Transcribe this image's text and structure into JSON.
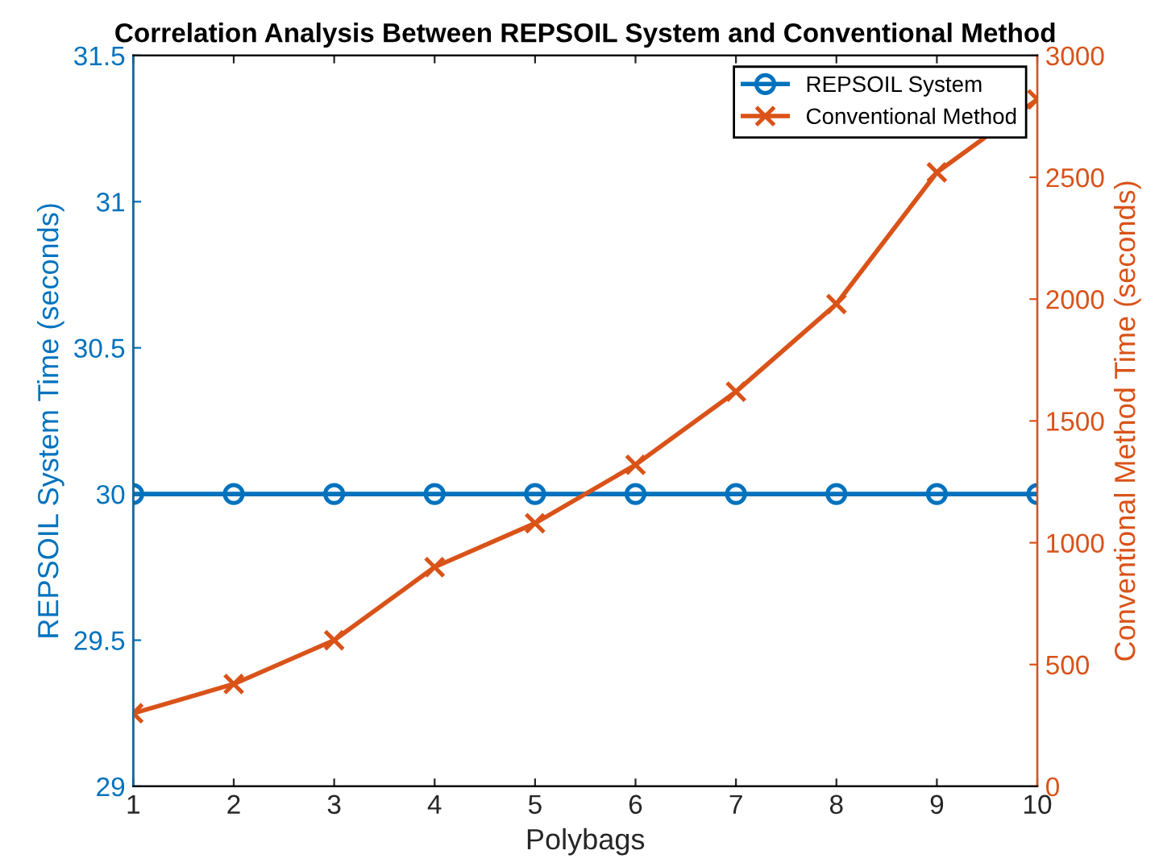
{
  "chart_data": {
    "type": "line",
    "title": "Correlation Analysis Between REPSOIL System and Conventional Method",
    "xlabel": "Polybags",
    "ylabel": "REPSOIL System Time (seconds)",
    "y2label": "Conventional Method Time (seconds)",
    "x": [
      1,
      2,
      3,
      4,
      5,
      6,
      7,
      8,
      9,
      10
    ],
    "series": [
      {
        "name": "REPSOIL System",
        "color": "#0072bd",
        "marker": "circle",
        "values": [
          30,
          30,
          30,
          30,
          30,
          30,
          30,
          30,
          30,
          30
        ]
      },
      {
        "name": "Conventional Method",
        "color": "#d95319",
        "marker": "cross",
        "axis": "y2",
        "values": [
          300,
          420,
          600,
          900,
          1080,
          1320,
          1620,
          1980,
          2520,
          2820
        ]
      }
    ],
    "xlim": [
      1,
      10
    ],
    "xticks": [
      1,
      2,
      3,
      4,
      5,
      6,
      7,
      8,
      9,
      10
    ],
    "ylim": [
      29,
      31.5
    ],
    "yticks": [
      29,
      29.5,
      30,
      30.5,
      31,
      31.5
    ],
    "y2lim": [
      0,
      3000
    ],
    "y2ticks": [
      0,
      500,
      1000,
      1500,
      2000,
      2500,
      3000
    ],
    "grid": false,
    "legend": "top right",
    "line_style": "solid"
  }
}
